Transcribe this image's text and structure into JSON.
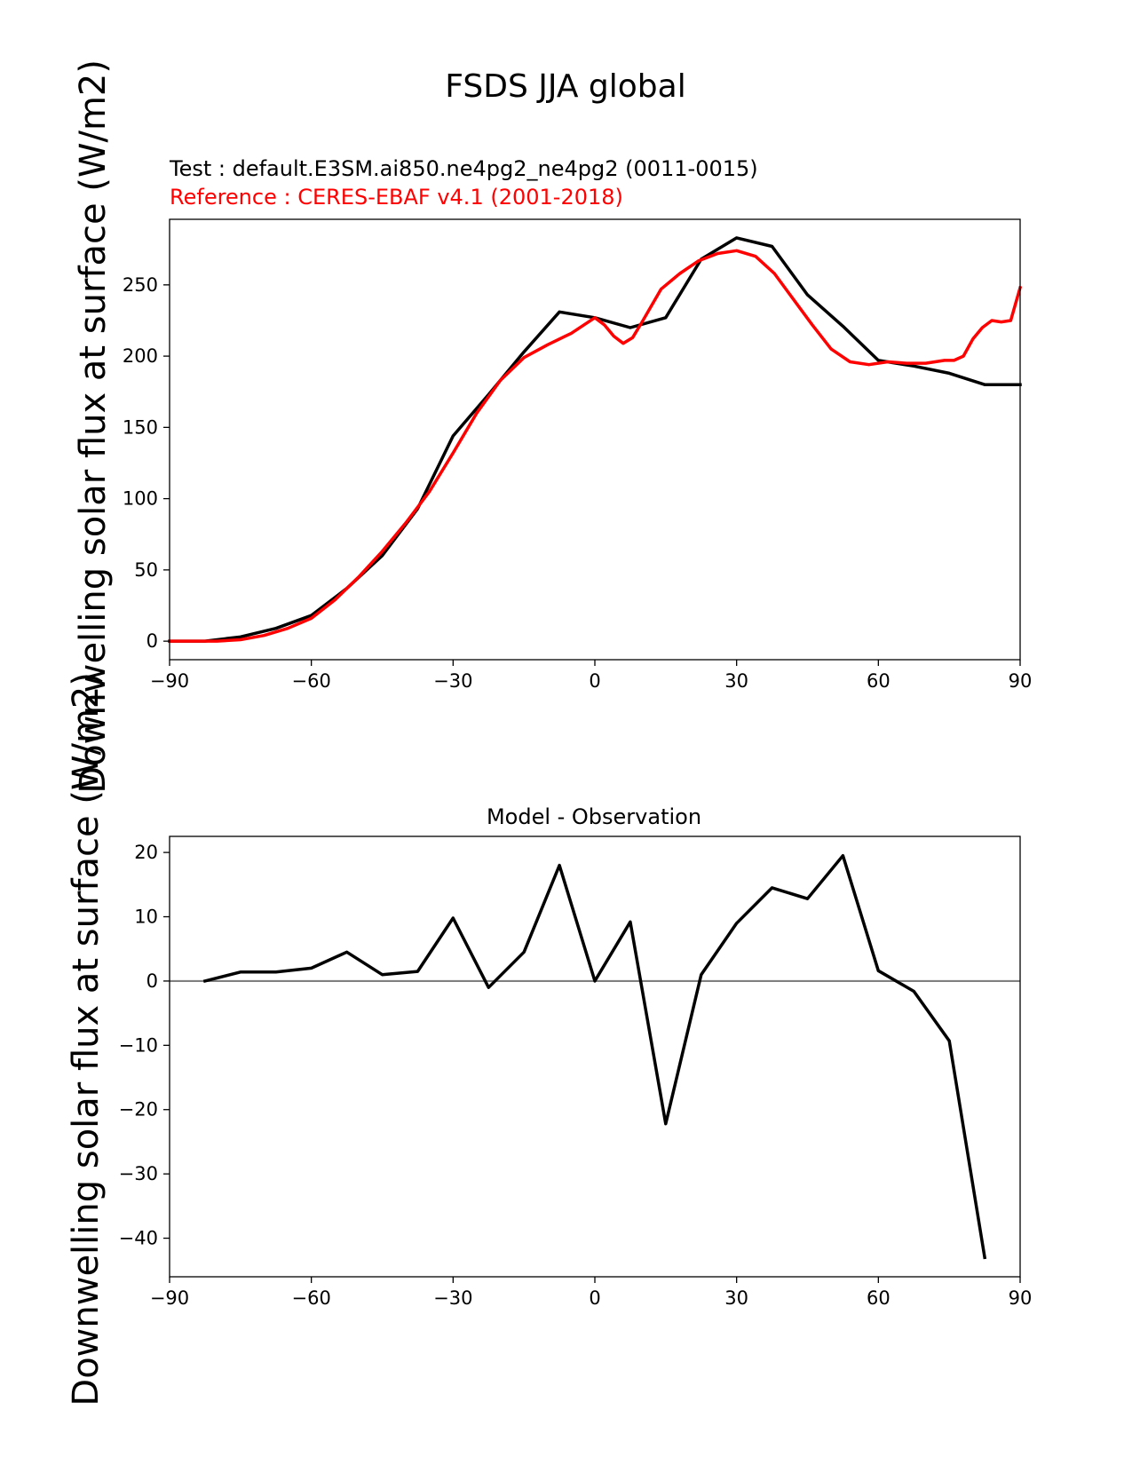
{
  "figure": {
    "title": "FSDS JJA global",
    "test_label": "Test : default.E3SM.ai850.ne4pg2_ne4pg2 (0011-0015)",
    "ref_label": "Reference : CERES-EBAF v4.1 (2001-2018)",
    "diff_title": "Model - Observation",
    "ylabel_top": "Downwelling solar flux at surface (W/m2)",
    "ylabel_bottom": "Downwelling solar flux at surface (W/m2)"
  },
  "chart_data": [
    {
      "type": "line",
      "xlim": [
        -90,
        90
      ],
      "ylim": [
        -13,
        296
      ],
      "xticks": [
        -90,
        -60,
        -30,
        0,
        30,
        60,
        90
      ],
      "yticks": [
        0,
        50,
        100,
        150,
        200,
        250
      ],
      "series": [
        {
          "color": "#000000",
          "x": [
            -90,
            -82.5,
            -75,
            -67.5,
            -60,
            -52.5,
            -45,
            -37.5,
            -30,
            -22.5,
            -15,
            -7.5,
            0,
            7.5,
            15,
            22.5,
            30,
            37.5,
            45,
            52.5,
            60,
            67.5,
            75,
            82.5,
            90
          ],
          "y": [
            0,
            0,
            3,
            9,
            18,
            37,
            60,
            93,
            144,
            173,
            203,
            231,
            227,
            220,
            227,
            268,
            283,
            277,
            243,
            221,
            197,
            193,
            188,
            180,
            180
          ]
        },
        {
          "color": "#ff0000",
          "x": [
            -90,
            -85,
            -80,
            -75,
            -70,
            -65,
            -60,
            -55,
            -50,
            -45,
            -40,
            -35,
            -30,
            -25,
            -20,
            -15,
            -10,
            -5,
            0,
            2,
            4,
            6,
            8,
            10,
            14,
            18,
            22,
            26,
            30,
            34,
            38,
            42,
            46,
            50,
            54,
            58,
            62,
            66,
            70,
            74,
            76,
            78,
            80,
            82,
            84,
            86,
            88,
            90
          ],
          "y": [
            0,
            0,
            0,
            1,
            4,
            9,
            16,
            29,
            45,
            63,
            83,
            105,
            132,
            160,
            183,
            199,
            208,
            216,
            227,
            222,
            214,
            209,
            213,
            224,
            247,
            258,
            267,
            272,
            274,
            270,
            258,
            240,
            222,
            205,
            196,
            194,
            196,
            195,
            195,
            197,
            197,
            200,
            212,
            220,
            225,
            224,
            225,
            248
          ]
        }
      ]
    },
    {
      "type": "line",
      "title": "Model - Observation",
      "xlim": [
        -90,
        90
      ],
      "ylim": [
        -46,
        22.5
      ],
      "xticks": [
        -90,
        -60,
        -30,
        0,
        30,
        60,
        90
      ],
      "yticks": [
        -40,
        -30,
        -20,
        -10,
        0,
        10,
        20
      ],
      "zero_line_color": "#808080",
      "series": [
        {
          "color": "#000000",
          "x": [
            -82.5,
            -75,
            -67.5,
            -60,
            -52.5,
            -45,
            -37.5,
            -30,
            -22.5,
            -15,
            -7.5,
            0,
            7.5,
            15,
            22.5,
            30,
            37.5,
            45,
            52.5,
            60,
            67.5,
            75,
            82.5
          ],
          "y": [
            0,
            1.4,
            1.4,
            2,
            4.5,
            1,
            1.5,
            9.8,
            -1,
            4.5,
            18,
            0,
            9.2,
            -22.2,
            1,
            9,
            14.5,
            12.8,
            19.5,
            1.6,
            -1.6,
            -9.3,
            -43
          ]
        }
      ]
    }
  ]
}
